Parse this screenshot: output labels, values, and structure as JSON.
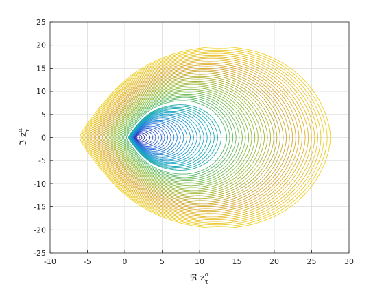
{
  "chart_data": {
    "type": "line",
    "title": "",
    "xlabel": "ℜ z",
    "xlabel_sup": "α",
    "xlabel_sub": "τ",
    "ylabel": "ℑ z",
    "ylabel_sup": "α",
    "ylabel_sub": "τ",
    "xlim": [
      -10,
      30
    ],
    "ylim": [
      -25,
      25
    ],
    "xticks": [
      -10,
      -5,
      0,
      5,
      10,
      15,
      20,
      25,
      30
    ],
    "yticks": [
      -25,
      -20,
      -15,
      -10,
      -5,
      0,
      5,
      10,
      15,
      20,
      25
    ],
    "grid": true,
    "legend": "none",
    "colormap": [
      "#3b1fa0",
      "#2a6ee0",
      "#1aa6c8",
      "#2fb38a",
      "#8cbd3a",
      "#d8a52c",
      "#f0d020"
    ],
    "curve_families": [
      {
        "name": "inner",
        "count": 28,
        "focus": [
          1.4,
          0
        ],
        "outer_right_x": 12.9,
        "outer_left_x": 0.5,
        "outer_top_y": 7.1,
        "color_range": [
          0,
          0.42
        ]
      },
      {
        "name": "outer",
        "count": 34,
        "focus": [
          1.4,
          0
        ],
        "outer_right_x": 27.5,
        "outer_left_x": -6.0,
        "outer_top_y": 19.6,
        "inner_right_x": 13.2,
        "color_range": [
          0.55,
          1.0
        ]
      }
    ]
  }
}
